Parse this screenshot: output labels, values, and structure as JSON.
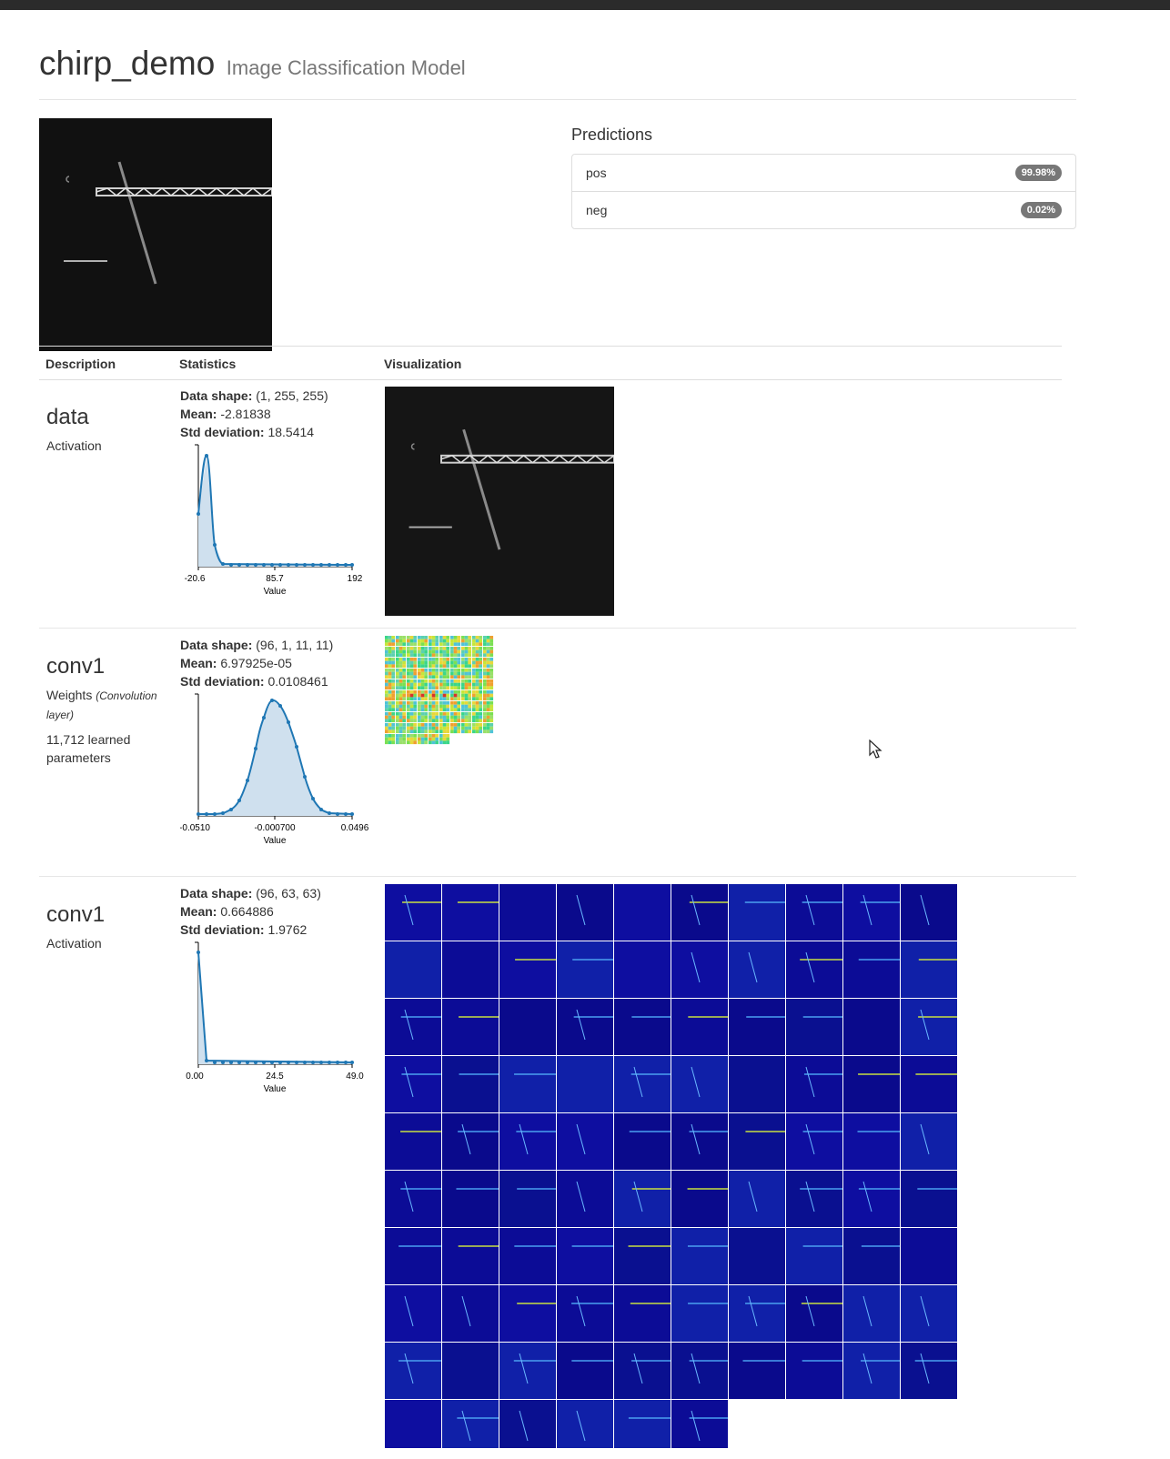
{
  "header": {
    "title": "chirp_demo",
    "subtitle": "Image Classification Model"
  },
  "predictions": {
    "title": "Predictions",
    "items": [
      {
        "label": "pos",
        "value": "99.98%"
      },
      {
        "label": "neg",
        "value": "0.02%"
      }
    ]
  },
  "table": {
    "columns": [
      "Description",
      "Statistics",
      "Visualization"
    ]
  },
  "layers": [
    {
      "name": "data",
      "kind": "Activation",
      "shape_label": "Data shape:",
      "shape": "(1, 255, 255)",
      "mean_label": "Mean:",
      "mean": "-2.81838",
      "std_label": "Std deviation:",
      "std": "18.5414",
      "hist": {
        "ticks": [
          "-20.6",
          "85.7",
          "192"
        ],
        "xlabel": "Value"
      }
    },
    {
      "name": "conv1",
      "kind": "Weights",
      "kind_note": "(Convolution layer)",
      "params": "11,712 learned parameters",
      "shape_label": "Data shape:",
      "shape": "(96, 1, 11, 11)",
      "mean_label": "Mean:",
      "mean": "6.97925e-05",
      "std_label": "Std deviation:",
      "std": "0.0108461",
      "hist": {
        "ticks": [
          "-0.0510",
          "-0.000700",
          "0.0496"
        ],
        "xlabel": "Value"
      }
    },
    {
      "name": "conv1",
      "kind": "Activation",
      "shape_label": "Data shape:",
      "shape": "(96, 63, 63)",
      "mean_label": "Mean:",
      "mean": "0.664886",
      "std_label": "Std deviation:",
      "std": "1.9762",
      "hist": {
        "ticks": [
          "0.00",
          "24.5",
          "49.0"
        ],
        "xlabel": "Value"
      }
    }
  ],
  "colors": {
    "hist_line": "#1f77b4",
    "hist_fill": "#cfe0ee",
    "activation_bg": "#0a0a8c"
  }
}
